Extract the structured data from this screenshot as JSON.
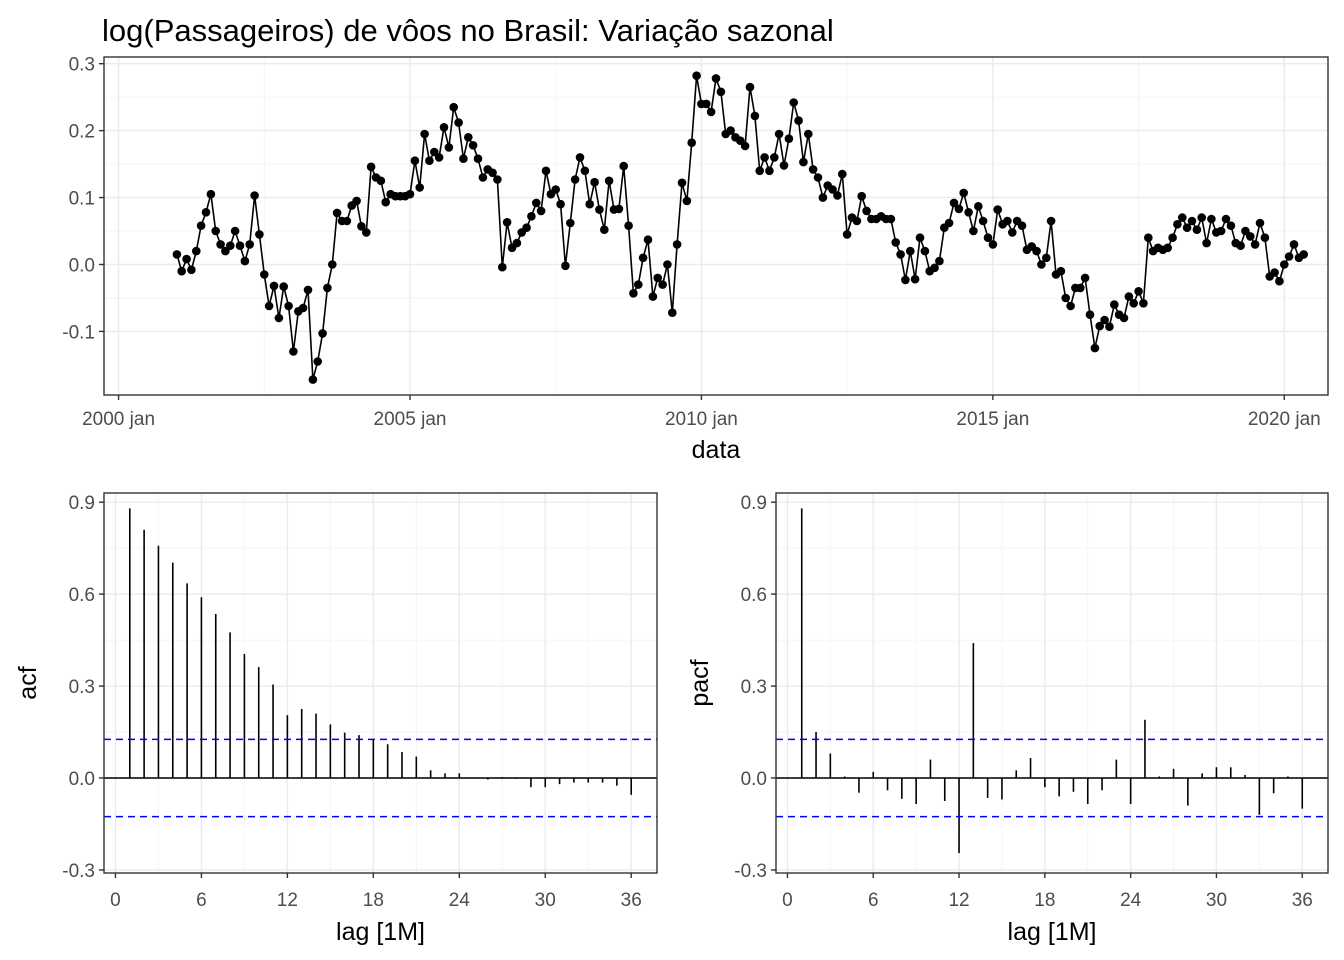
{
  "chart_data": [
    {
      "type": "line",
      "title": "log(Passageiros) de vôos no Brasil: Variação sazonal",
      "xlabel": "data",
      "ylabel": "",
      "x_start": "2001 jan",
      "x_frequency": "monthly",
      "xlim": [
        "1999 out",
        "2020 out"
      ],
      "ylim": [
        -0.195,
        0.31
      ],
      "x_ticks": [
        "2000 jan",
        "2005 jan",
        "2010 jan",
        "2015 jan",
        "2020 jan"
      ],
      "y_ticks": [
        -0.1,
        0.0,
        0.1,
        0.2,
        0.3
      ],
      "y_tick_labels": [
        "-0.1",
        "0.0",
        "0.1",
        "0.2",
        "0.3"
      ],
      "grid": true,
      "line_color": "#000000",
      "values": [
        0.015,
        -0.01,
        0.008,
        -0.008,
        0.02,
        0.058,
        0.078,
        0.105,
        0.05,
        0.03,
        0.02,
        0.028,
        0.05,
        0.028,
        0.005,
        0.03,
        0.103,
        0.045,
        -0.015,
        -0.062,
        -0.032,
        -0.08,
        -0.033,
        -0.062,
        -0.13,
        -0.07,
        -0.065,
        -0.038,
        -0.172,
        -0.145,
        -0.103,
        -0.035,
        0.0,
        0.077,
        0.065,
        0.065,
        0.088,
        0.095,
        0.057,
        0.048,
        0.146,
        0.13,
        0.125,
        0.093,
        0.105,
        0.102,
        0.102,
        0.102,
        0.105,
        0.155,
        0.115,
        0.195,
        0.155,
        0.168,
        0.16,
        0.205,
        0.175,
        0.235,
        0.212,
        0.158,
        0.19,
        0.178,
        0.158,
        0.13,
        0.142,
        0.137,
        0.127,
        -0.004,
        0.063,
        0.025,
        0.032,
        0.048,
        0.055,
        0.072,
        0.092,
        0.08,
        0.14,
        0.105,
        0.112,
        0.09,
        -0.002,
        0.062,
        0.127,
        0.16,
        0.14,
        0.09,
        0.123,
        0.082,
        0.052,
        0.125,
        0.082,
        0.083,
        0.147,
        0.058,
        -0.043,
        -0.03,
        0.01,
        0.037,
        -0.048,
        -0.02,
        -0.03,
        0.0,
        -0.072,
        0.03,
        0.122,
        0.095,
        0.182,
        0.282,
        0.24,
        0.24,
        0.228,
        0.278,
        0.258,
        0.195,
        0.2,
        0.19,
        0.185,
        0.177,
        0.265,
        0.222,
        0.14,
        0.16,
        0.14,
        0.16,
        0.195,
        0.148,
        0.188,
        0.242,
        0.215,
        0.153,
        0.195,
        0.142,
        0.13,
        0.1,
        0.118,
        0.112,
        0.103,
        0.135,
        0.045,
        0.07,
        0.065,
        0.102,
        0.08,
        0.068,
        0.068,
        0.072,
        0.068,
        0.068,
        0.033,
        0.015,
        -0.023,
        0.02,
        -0.022,
        0.04,
        0.02,
        -0.01,
        -0.005,
        0.005,
        0.055,
        0.062,
        0.092,
        0.083,
        0.107,
        0.078,
        0.05,
        0.087,
        0.065,
        0.04,
        0.03,
        0.082,
        0.06,
        0.065,
        0.048,
        0.065,
        0.058,
        0.022,
        0.027,
        0.02,
        0.0,
        0.01,
        0.065,
        -0.015,
        -0.01,
        -0.05,
        -0.062,
        -0.035,
        -0.035,
        -0.02,
        -0.075,
        -0.125,
        -0.092,
        -0.083,
        -0.093,
        -0.06,
        -0.075,
        -0.08,
        -0.048,
        -0.058,
        -0.04,
        -0.058,
        0.04,
        0.02,
        0.025,
        0.022,
        0.025,
        0.04,
        0.06,
        0.07,
        0.055,
        0.065,
        0.052,
        0.07,
        0.032,
        0.068,
        0.048,
        0.05,
        0.068,
        0.058,
        0.032,
        0.028,
        0.05,
        0.042,
        0.03,
        0.062,
        0.04,
        -0.018,
        -0.012,
        -0.025,
        0.0,
        0.012,
        0.03,
        0.01,
        0.015
      ]
    },
    {
      "type": "bar",
      "title": "",
      "xlabel": "lag [1M]",
      "ylabel": "acf",
      "xlim": [
        -0.8,
        37.8
      ],
      "ylim": [
        -0.31,
        0.93
      ],
      "x_ticks": [
        0,
        6,
        12,
        18,
        24,
        30,
        36
      ],
      "y_ticks": [
        -0.3,
        0.0,
        0.3,
        0.6,
        0.9
      ],
      "y_tick_labels": [
        "-0.3",
        "0.0",
        "0.3",
        "0.6",
        "0.9"
      ],
      "grid": true,
      "bar_color": "#000000",
      "confidence_limit": 0.126,
      "confidence_color": "#0000ff",
      "lags": [
        1,
        2,
        3,
        4,
        5,
        6,
        7,
        8,
        9,
        10,
        11,
        12,
        13,
        14,
        15,
        16,
        17,
        18,
        19,
        20,
        21,
        22,
        23,
        24,
        25,
        26,
        27,
        28,
        29,
        30,
        31,
        32,
        33,
        34,
        35,
        36
      ],
      "values": [
        0.88,
        0.81,
        0.758,
        0.703,
        0.635,
        0.59,
        0.535,
        0.475,
        0.405,
        0.362,
        0.305,
        0.205,
        0.225,
        0.21,
        0.175,
        0.148,
        0.14,
        0.125,
        0.11,
        0.085,
        0.07,
        0.025,
        0.015,
        0.015,
        0.0,
        -0.005,
        0.003,
        -0.003,
        -0.03,
        -0.03,
        -0.02,
        -0.015,
        -0.015,
        -0.015,
        -0.025,
        -0.055
      ]
    },
    {
      "type": "bar",
      "title": "",
      "xlabel": "lag [1M]",
      "ylabel": "pacf",
      "xlim": [
        -0.8,
        37.8
      ],
      "ylim": [
        -0.31,
        0.93
      ],
      "x_ticks": [
        0,
        6,
        12,
        18,
        24,
        30,
        36
      ],
      "y_ticks": [
        -0.3,
        0.0,
        0.3,
        0.6,
        0.9
      ],
      "y_tick_labels": [
        "-0.3",
        "0.0",
        "0.3",
        "0.6",
        "0.9"
      ],
      "grid": true,
      "bar_color": "#000000",
      "confidence_limit": 0.126,
      "confidence_color": "#0000ff",
      "lags": [
        1,
        2,
        3,
        4,
        5,
        6,
        7,
        8,
        9,
        10,
        11,
        12,
        13,
        14,
        15,
        16,
        17,
        18,
        19,
        20,
        21,
        22,
        23,
        24,
        25,
        26,
        27,
        28,
        29,
        30,
        31,
        32,
        33,
        34,
        35,
        36
      ],
      "values": [
        0.88,
        0.15,
        0.08,
        0.005,
        -0.048,
        0.02,
        -0.04,
        -0.068,
        -0.085,
        0.06,
        -0.075,
        -0.245,
        0.44,
        -0.065,
        -0.07,
        0.025,
        0.065,
        -0.03,
        -0.06,
        -0.045,
        -0.085,
        -0.04,
        0.06,
        -0.085,
        0.19,
        0.005,
        0.03,
        -0.09,
        0.015,
        0.035,
        0.035,
        0.01,
        -0.12,
        -0.05,
        0.005,
        -0.1
      ]
    }
  ]
}
